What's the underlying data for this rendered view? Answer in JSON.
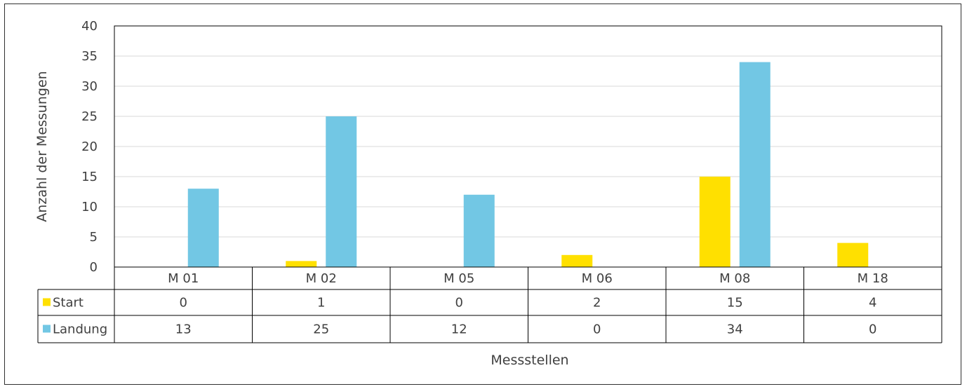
{
  "chart_data": {
    "type": "bar",
    "title": "",
    "xlabel": "Messstellen",
    "ylabel": "Anzahl der Messungen",
    "categories": [
      "M 01",
      "M 02",
      "M 05",
      "M 06",
      "M 08",
      "M 18"
    ],
    "series": [
      {
        "name": "Start",
        "values": [
          0,
          1,
          0,
          2,
          15,
          4
        ],
        "color": "#FFE000"
      },
      {
        "name": "Landung",
        "values": [
          13,
          25,
          12,
          0,
          34,
          0
        ],
        "color": "#72C7E4"
      }
    ],
    "ylim": [
      0,
      40
    ],
    "yticks": [
      0,
      5,
      10,
      15,
      20,
      25,
      30,
      35,
      40
    ],
    "grid": true,
    "legend": "data-table",
    "data_table": true
  }
}
